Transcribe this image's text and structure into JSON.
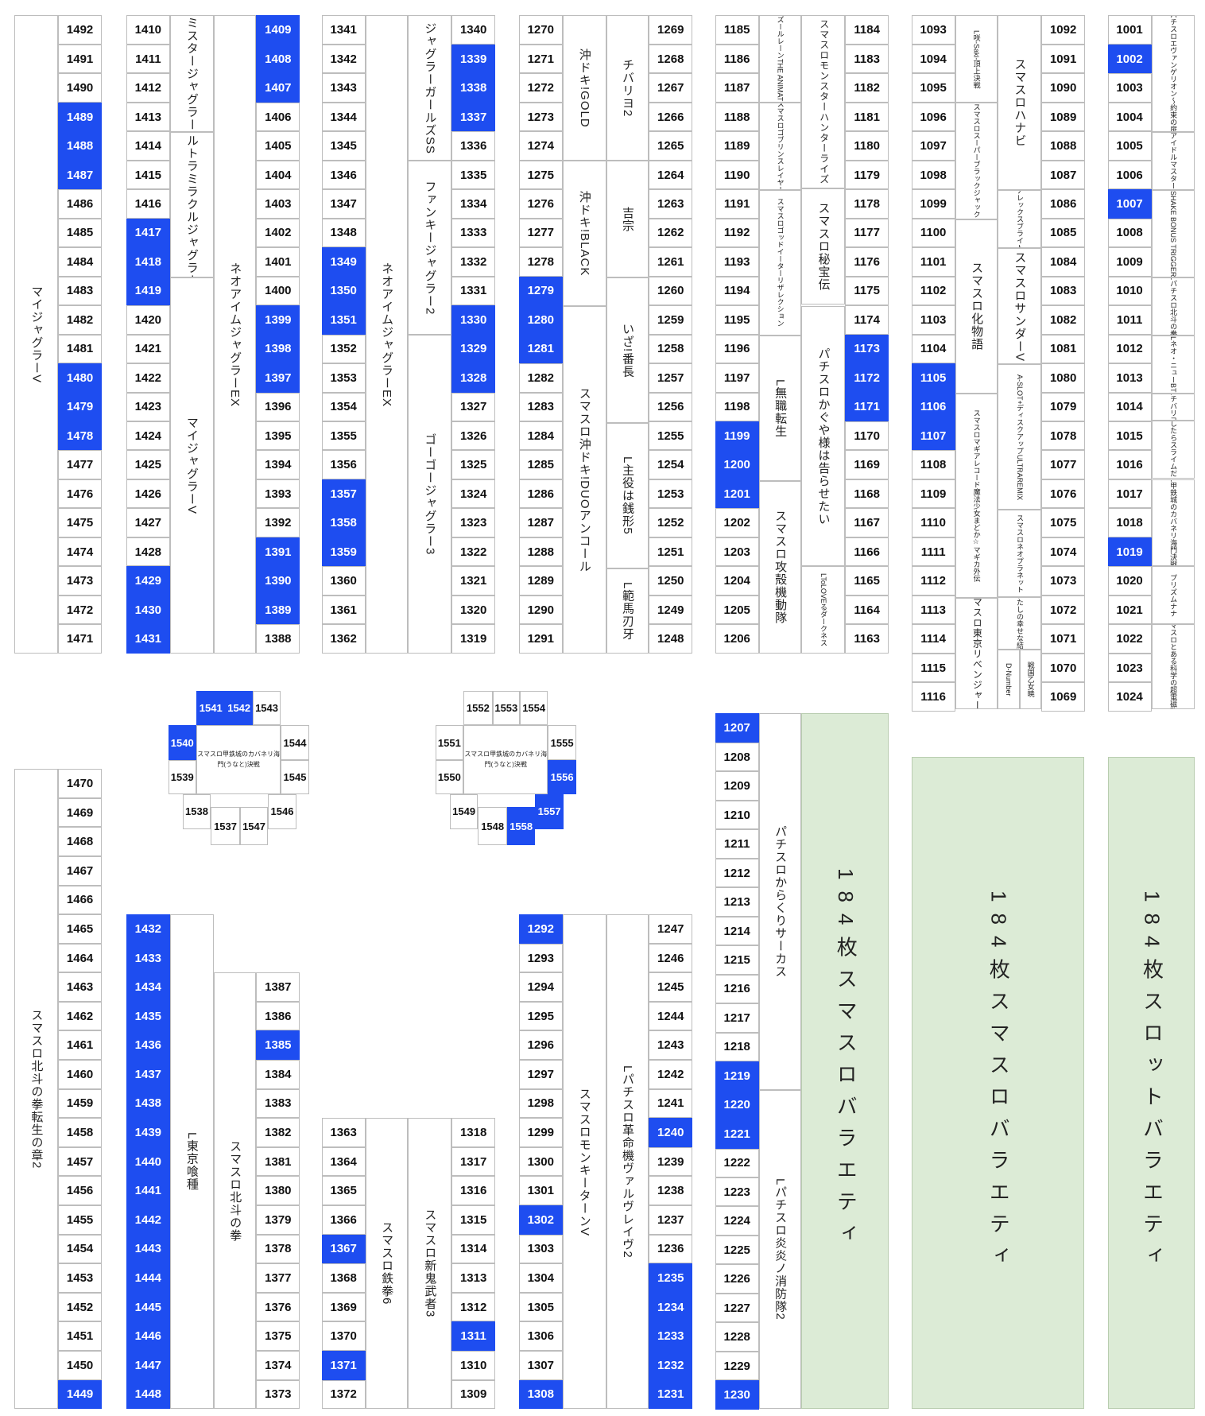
{
  "colors": {
    "selected": "#1e4df0",
    "variety": "#dcebd6"
  },
  "label_texts": {
    "L1": "マイジャグラーV",
    "L2": "ミスタージャグラー",
    "L3": "ウルトラミラクルジャグラー",
    "L4": "マイジャグラーV",
    "L5": "ネオアイムジャグラーEX",
    "L6": "ネオアイムジャグラーEX",
    "L7": "ジャグラーガールズSS",
    "L8": "ファンキージャグラー2",
    "L9": "ゴーゴージャグラー3",
    "L10": "沖ドキ!GOLD",
    "L11": "沖ドキ!BLACK",
    "L12": "スマスロ沖ドキ!DUOアンコール",
    "L13": "チバリヨ2",
    "L14": "吉宗",
    "L15": "いざ!番長",
    "L16": "L主役は銭形5",
    "L17": "L範馬刃牙",
    "L18": "LアズールレーンTHE ANIMATION",
    "L19": "スマスロゴブリンスレイヤー",
    "L20": "スマスロゴッドイーターリザレクション",
    "L21": "L無職転生",
    "L22": "スマスロ攻殻機動隊",
    "L23": "スマスロモンスターハンターライズ",
    "L24": "スマスロ秘宝伝",
    "L25": "パチスロかぐや様は告らせたい",
    "L26": "LToLOVEるダークネス",
    "L27": "L咲-Saki-頂上決戦",
    "L28": "スマスロスーパーブラックジャック",
    "L29": "スマスロ化物語",
    "L30": "スマスロマギアレコード魔法少女まどか☆マギカ外伝",
    "L31": "スマスロ東京リベンジャーズ",
    "L32": "スマスロハナビ",
    "L33": "アレックスブライト",
    "L34": "スマスロサンダーV",
    "L35": "A-SLOT+ディスクアップULTRAREMIX",
    "L36": "スマスロネオプラネット",
    "L37": "わたしの幸せな結婚",
    "L38": "D-Number",
    "L39": "戦国乙女暁",
    "L40": "Lパチスロエヴァンゲリオン〜約束の扉〜",
    "L41": "アイドルマスター",
    "L42": "SHAKE BONUS TRIGGER",
    "L43": "Lパチスロ北斗の拳",
    "L44": "Lネオ・ニューBT",
    "L45": "Lチバリヨ",
    "L46": "L転生したらスライムだった件",
    "L47": "L甲鉄城のカバネリ海門決戦",
    "L48": "プリズムナナ",
    "L49": "スマスロとある科学の超電磁砲2",
    "L50": "スマスロ北斗の拳転生の章2",
    "L51": "L東京喰種",
    "L52": "スマスロ北斗の拳",
    "L53": "スマスロ鉄拳6",
    "L54": "スマスロ新鬼武者3",
    "L55": "スマスロモンキーターンV",
    "L56": "Lパチスロ革命機ヴァルヴレイヴ2",
    "L57": "パチスロからくりサーカス",
    "L58": "Lパチスロ炎炎ノ消防隊2",
    "L59": "184枚スマスロバラエティ",
    "L60": "184枚スマスロバラエティ",
    "L61": "184枚スロットバラエティ",
    "L62": "スマスロ甲鉄城のカバネリ海門(うなと)決戦",
    "L63": "スマスロ甲鉄城のカバネリ海門(うなと)決戦"
  },
  "selected_machines": [
    "1489",
    "1488",
    "1487",
    "1480",
    "1479",
    "1478",
    "1417",
    "1418",
    "1419",
    "1429",
    "1430",
    "1431",
    "1409",
    "1408",
    "1407",
    "1399",
    "1398",
    "1397",
    "1391",
    "1390",
    "1389",
    "1349",
    "1350",
    "1351",
    "1357",
    "1358",
    "1359",
    "1339",
    "1338",
    "1337",
    "1330",
    "1329",
    "1328",
    "1279",
    "1280",
    "1281",
    "1199",
    "1200",
    "1201",
    "1173",
    "1172",
    "1171",
    "1105",
    "1106",
    "1107",
    "1002",
    "1007",
    "1019",
    "1541",
    "1542",
    "1540",
    "1556",
    "1558",
    "1557",
    "1432",
    "1433",
    "1434",
    "1435",
    "1436",
    "1437",
    "1438",
    "1439",
    "1440",
    "1441",
    "1442",
    "1443",
    "1444",
    "1445",
    "1446",
    "1447",
    "1448",
    "1449",
    "1385",
    "1367",
    "1371",
    "1311",
    "1292",
    "1302",
    "1308",
    "1240",
    "1235",
    "1234",
    "1233",
    "1232",
    "1231",
    "1207",
    "1219",
    "1220",
    "1221",
    "1230"
  ]
}
